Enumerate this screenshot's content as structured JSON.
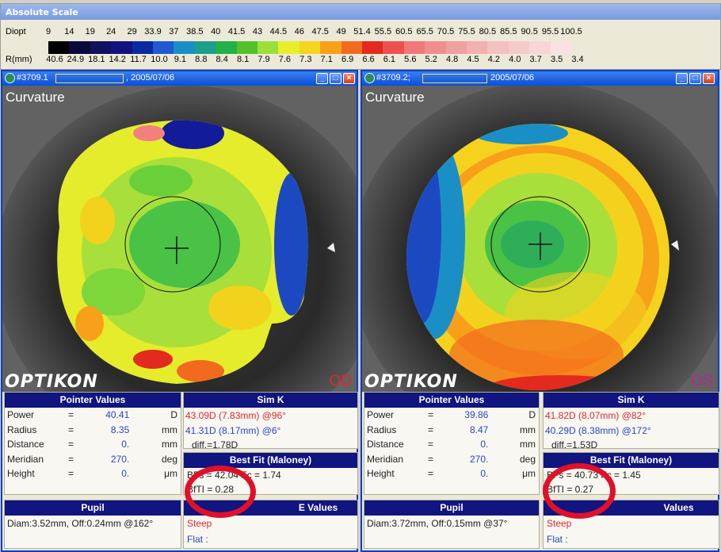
{
  "scale": {
    "title": "Absolute Scale",
    "diopt_label": "Diopt",
    "rmm_label": "R(mm)",
    "diopt_values": [
      "9",
      "14",
      "19",
      "24",
      "29",
      "33.9",
      "37",
      "38.5",
      "40",
      "41.5",
      "43",
      "44.5",
      "46",
      "47.5",
      "49",
      "51.4",
      "55.5",
      "60.5",
      "65.5",
      "70.5",
      "75.5",
      "80.5",
      "85.5",
      "90.5",
      "95.5",
      "100.5"
    ],
    "rmm_values": [
      "40.6",
      "24.9",
      "18.1",
      "14.2",
      "11.7",
      "10.0",
      "9.1",
      "8.8",
      "8.4",
      "8.1",
      "7.9",
      "7.6",
      "7.3",
      "7.1",
      "6.9",
      "6.6",
      "6.1",
      "5.6",
      "5.2",
      "4.8",
      "4.5",
      "4.2",
      "4.0",
      "3.7",
      "3.5",
      "3.4"
    ],
    "colors": [
      "#000000",
      "#0a0a3a",
      "#10105e",
      "#121280",
      "#0a2aa0",
      "#1e5ad0",
      "#1a8fc6",
      "#1c9f8a",
      "#23b048",
      "#53c22a",
      "#9be03a",
      "#e6ef2a",
      "#f5d51e",
      "#f8a01a",
      "#f36a1e",
      "#e32a1e",
      "#ee5050",
      "#f07878",
      "#f08e8e",
      "#f0a0a0",
      "#f2b0b0",
      "#f4c0c0",
      "#f6caca",
      "#f8d6d6",
      "#fae2e2"
    ]
  },
  "left": {
    "title_id": "#3709.1",
    "title_date": ", 2005/07/06",
    "map_title": "Curvature",
    "eye": "OD",
    "eye_color": "#e0282a",
    "brand": "OPTIKON",
    "pointer": {
      "header": "Pointer Values",
      "rows": [
        {
          "name": "Power",
          "eq": "=",
          "val": "40.41",
          "unit": "D"
        },
        {
          "name": "Radius",
          "eq": "=",
          "val": "8.35",
          "unit": "mm"
        },
        {
          "name": "Distance",
          "eq": "=",
          "val": "0.",
          "unit": "mm"
        },
        {
          "name": "Meridian",
          "eq": "=",
          "val": "270.",
          "unit": "deg"
        },
        {
          "name": "Height",
          "eq": "=",
          "val": "0.",
          "unit": "μm"
        }
      ]
    },
    "simk": {
      "header": "Sim K",
      "steep": "43.09D (7.83mm) @96°",
      "flat": "41.31D (8.17mm) @6°",
      "diff": "diff.=1.78D"
    },
    "bestfit": {
      "header": "Best Fit (Maloney)",
      "line1": "BFs = 42.04  Fc = 1.74",
      "line2": "BfTI = 0.28"
    },
    "pupil": {
      "header": "Pupil",
      "text": "Diam:3.52mm, Off:0.24mm @162°"
    },
    "evalues": {
      "header": "E Values",
      "steep": "Steep",
      "flat": "Flat   :"
    }
  },
  "right": {
    "title_id": "#3709.2;",
    "title_date": "2005/07/06",
    "map_title": "Curvature",
    "eye": "OS",
    "eye_color": "#b4289a",
    "brand": "OPTIKON",
    "pointer": {
      "header": "Pointer Values",
      "rows": [
        {
          "name": "Power",
          "eq": "=",
          "val": "39.86",
          "unit": "D"
        },
        {
          "name": "Radius",
          "eq": "=",
          "val": "8.47",
          "unit": "mm"
        },
        {
          "name": "Distance",
          "eq": "=",
          "val": "0.",
          "unit": "mm"
        },
        {
          "name": "Meridian",
          "eq": "=",
          "val": "270.",
          "unit": "deg"
        },
        {
          "name": "Height",
          "eq": "=",
          "val": "0.",
          "unit": "μm"
        }
      ]
    },
    "simk": {
      "header": "Sim K",
      "steep": "41.82D (8.07mm) @82°",
      "flat": "40.29D (8.38mm) @172°",
      "diff": "diff.=1.53D"
    },
    "bestfit": {
      "header": "Best Fit (Maloney)",
      "line1": "BFs = 40.73  Fc = 1.45",
      "line2": "BfTI = 0.27"
    },
    "pupil": {
      "header": "Pupil",
      "text": "Diam:3.72mm, Off:0.15mm @37°"
    },
    "evalues": {
      "header": "Values",
      "steep": "Steep",
      "flat": "Flat   :"
    }
  }
}
